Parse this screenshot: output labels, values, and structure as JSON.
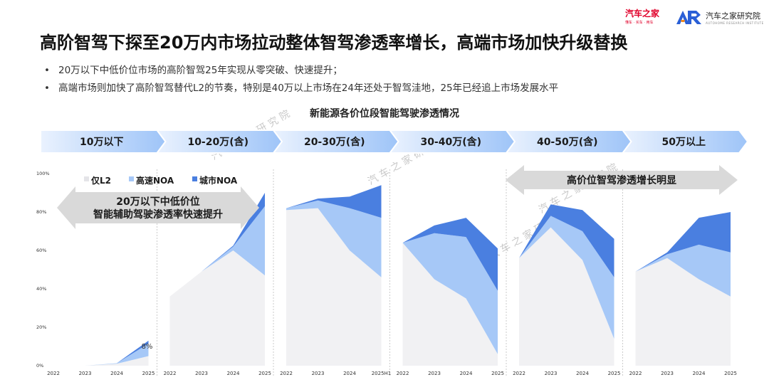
{
  "brand": {
    "logo_left": {
      "name": "汽车之家",
      "sub": "懂车 · 买车 · 用车"
    },
    "logo_right": {
      "name": "汽车之家研究院",
      "sub": "AUTOHOME RESEARCH INSTITUTE"
    },
    "watermark": "汽车之家研究院"
  },
  "header": {
    "title": "高阶智驾下探至20万内市场拉动整体智驾渗透率增长，高端市场加快升级替换"
  },
  "bullets": [
    "20万以下中低价位市场的高阶智驾25年实现从零突破、快速提升；",
    "高端市场则加快了高阶智驾替代L2的节奏，特别是40万以上市场在24年还处于智驾洼地，25年已经追上市场发展水平"
  ],
  "annotations": {
    "left_arrow": [
      "20万以下中低价位",
      "智能辅助驾驶渗透率快速提升"
    ],
    "right_arrow": "高价位智驾渗透增长明显"
  },
  "colors": {
    "l2": "#f1f1f3",
    "highway_noa": "#a6c8f7",
    "city_noa": "#4a7fe0",
    "band_start": "#eaf2fe",
    "band_end": "#9ec4f8",
    "arrow": "#d9d9d9"
  },
  "chart_data": {
    "type": "area",
    "title": "新能源各价位段智能驾驶渗透情况",
    "stacking": "stacked",
    "legend": [
      "仅L2",
      "高速NOA",
      "城市NOA"
    ],
    "legend_position": "top-left",
    "grid": false,
    "y_ticks": [
      "0%",
      "20%",
      "40%",
      "60%",
      "80%",
      "100%"
    ],
    "ylim": [
      0,
      100
    ],
    "panels": [
      {
        "price_band": "10万以下",
        "x": [
          "2022",
          "2023",
          "2024",
          "2025"
        ],
        "series": [
          {
            "name": "仅L2",
            "values": [
              0,
              0,
              1,
              5
            ]
          },
          {
            "name": "高速NOA",
            "values": [
              0,
              0,
              0.3,
              6.5
            ]
          },
          {
            "name": "城市NOA",
            "values": [
              0,
              0,
              0,
              1.5
            ]
          }
        ],
        "data_label": "8%"
      },
      {
        "price_band": "10-20万(含)",
        "x": [
          "2022",
          "2023",
          "2024",
          "2025"
        ],
        "series": [
          {
            "name": "仅L2",
            "values": [
              36,
              49,
              60,
              47
            ]
          },
          {
            "name": "高速NOA",
            "values": [
              0,
              0,
              2,
              36
            ]
          },
          {
            "name": "城市NOA",
            "values": [
              0,
              0,
              0.5,
              7
            ]
          }
        ]
      },
      {
        "price_band": "20-30万(含)",
        "x": [
          "2022",
          "2023",
          "2024",
          "2025H1"
        ],
        "series": [
          {
            "name": "仅L2",
            "values": [
              81,
              82,
              60,
              46
            ]
          },
          {
            "name": "高速NOA",
            "values": [
              1,
              4,
              22,
              31
            ]
          },
          {
            "name": "城市NOA",
            "values": [
              0,
              1,
              6,
              17
            ]
          }
        ]
      },
      {
        "price_band": "30-40万(含)",
        "x": [
          "2022",
          "2023",
          "2024",
          "2025"
        ],
        "series": [
          {
            "name": "仅L2",
            "values": [
              64,
              45,
              35,
              6
            ]
          },
          {
            "name": "高速NOA",
            "values": [
              0,
              24,
              32,
              33
            ]
          },
          {
            "name": "城市NOA",
            "values": [
              0,
              4,
              10,
              22
            ]
          }
        ]
      },
      {
        "price_band": "40-50万(含)",
        "x": [
          "2022",
          "2023",
          "2024",
          "2025"
        ],
        "series": [
          {
            "name": "仅L2",
            "values": [
              56,
              72,
              55,
              14
            ]
          },
          {
            "name": "高速NOA",
            "values": [
              0,
              6,
              15,
              32
            ]
          },
          {
            "name": "城市NOA",
            "values": [
              0,
              6,
              11,
              20
            ]
          }
        ]
      },
      {
        "price_band": "50万以上",
        "x": [
          "2022",
          "2023",
          "2024",
          "2025"
        ],
        "series": [
          {
            "name": "仅L2",
            "values": [
              49,
              56,
              45,
              36
            ]
          },
          {
            "name": "高速NOA",
            "values": [
              0,
              2,
              18,
              23
            ]
          },
          {
            "name": "城市NOA",
            "values": [
              0,
              1,
              14,
              21
            ]
          }
        ]
      }
    ]
  }
}
